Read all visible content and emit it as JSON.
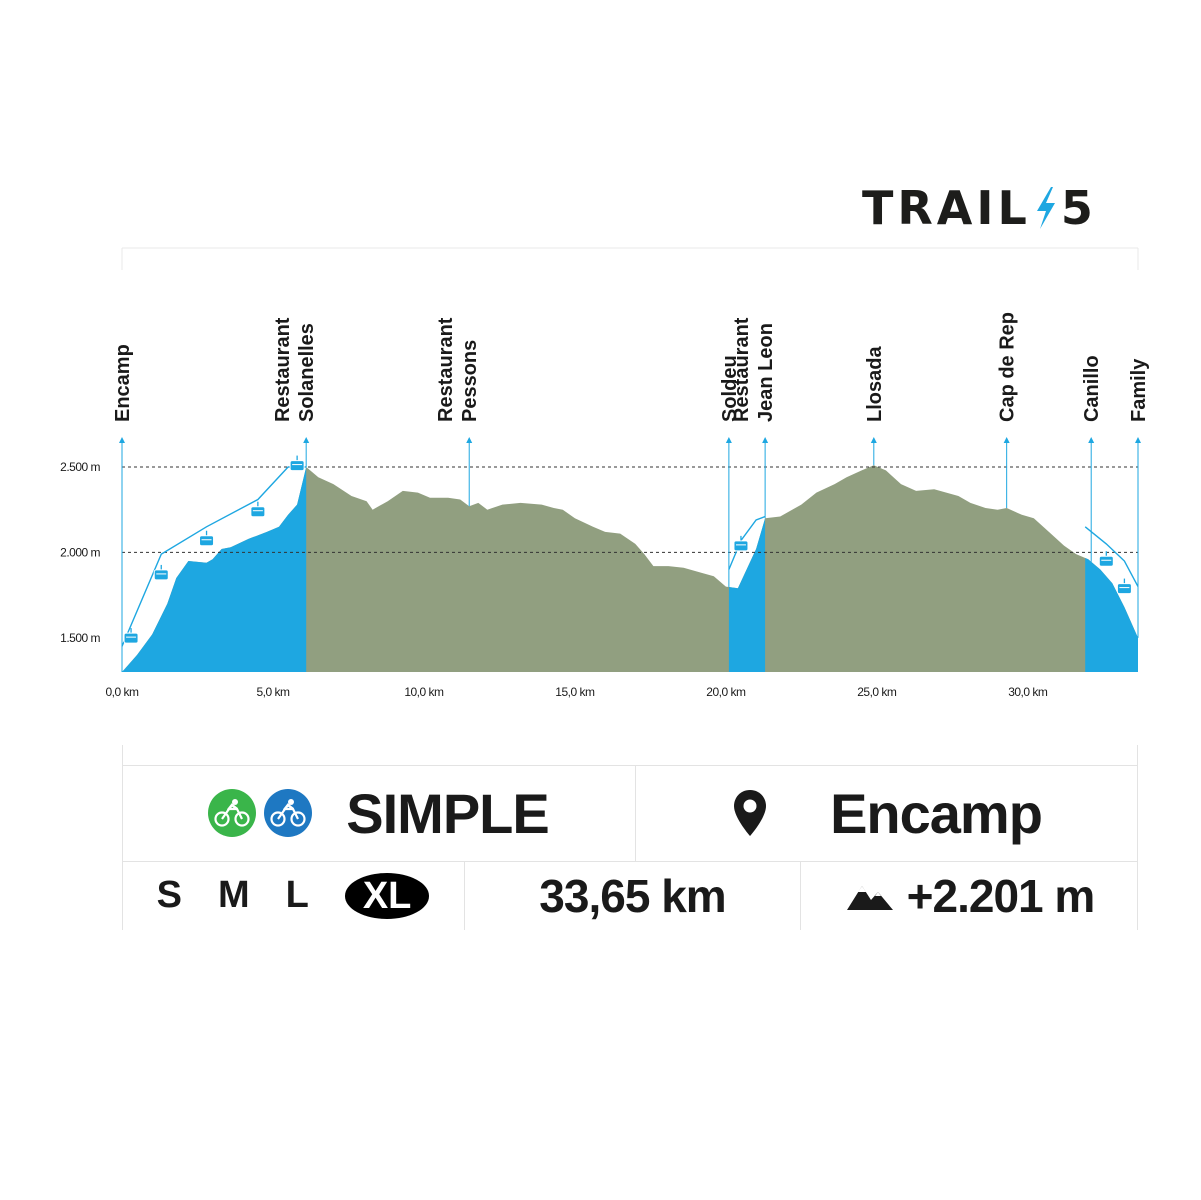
{
  "logo": {
    "text_left": "TRAIL",
    "text_right": "5",
    "accent_color": "#1ea7e1"
  },
  "chart_data": {
    "type": "area",
    "x_unit": "km",
    "y_unit": "m",
    "xlim": [
      0,
      33.65
    ],
    "ylim": [
      1300,
      2500
    ],
    "x_ticks": [
      {
        "value": 0,
        "label": "0,0 km"
      },
      {
        "value": 5,
        "label": "5,0 km"
      },
      {
        "value": 10,
        "label": "10,0 km"
      },
      {
        "value": 15,
        "label": "15,0 km"
      },
      {
        "value": 20,
        "label": "20,0 km"
      },
      {
        "value": 25,
        "label": "25,0 km"
      },
      {
        "value": 30,
        "label": "30,0 km"
      }
    ],
    "y_ticks": [
      {
        "value": 1500,
        "label": "1.500 m"
      },
      {
        "value": 2000,
        "label": "2.000 m"
      },
      {
        "value": 2500,
        "label": "2.500 m"
      }
    ],
    "gridlines": [
      2000,
      2500
    ],
    "colors": {
      "lift": "#1ea7e1",
      "trail": "#919f80",
      "cable": "#1ea7e1"
    },
    "profile": [
      [
        0,
        1300
      ],
      [
        0.5,
        1400
      ],
      [
        1.0,
        1520
      ],
      [
        1.5,
        1700
      ],
      [
        1.8,
        1850
      ],
      [
        2.2,
        1950
      ],
      [
        2.8,
        1940
      ],
      [
        3.0,
        1960
      ],
      [
        3.3,
        2020
      ],
      [
        3.6,
        2030
      ],
      [
        4.2,
        2080
      ],
      [
        4.8,
        2120
      ],
      [
        5.2,
        2150
      ],
      [
        5.5,
        2220
      ],
      [
        5.8,
        2280
      ],
      [
        6.1,
        2500
      ],
      [
        6.5,
        2440
      ],
      [
        7.0,
        2400
      ],
      [
        7.6,
        2330
      ],
      [
        8.1,
        2300
      ],
      [
        8.3,
        2250
      ],
      [
        8.8,
        2300
      ],
      [
        9.3,
        2360
      ],
      [
        9.8,
        2350
      ],
      [
        10.2,
        2320
      ],
      [
        10.8,
        2320
      ],
      [
        11.2,
        2310
      ],
      [
        11.5,
        2270
      ],
      [
        11.8,
        2290
      ],
      [
        12.1,
        2250
      ],
      [
        12.6,
        2280
      ],
      [
        13.2,
        2290
      ],
      [
        13.9,
        2280
      ],
      [
        14.3,
        2260
      ],
      [
        14.6,
        2250
      ],
      [
        15.0,
        2200
      ],
      [
        15.6,
        2150
      ],
      [
        16.0,
        2120
      ],
      [
        16.5,
        2110
      ],
      [
        17.0,
        2050
      ],
      [
        17.3,
        1990
      ],
      [
        17.6,
        1920
      ],
      [
        18.1,
        1920
      ],
      [
        18.6,
        1910
      ],
      [
        19.2,
        1880
      ],
      [
        19.6,
        1860
      ],
      [
        20.0,
        1800
      ],
      [
        20.4,
        1790
      ],
      [
        21.0,
        2020
      ],
      [
        21.3,
        2200
      ],
      [
        21.8,
        2210
      ],
      [
        22.5,
        2280
      ],
      [
        23.0,
        2350
      ],
      [
        23.6,
        2400
      ],
      [
        24.0,
        2440
      ],
      [
        24.5,
        2480
      ],
      [
        24.9,
        2510
      ],
      [
        25.3,
        2480
      ],
      [
        25.8,
        2400
      ],
      [
        26.3,
        2360
      ],
      [
        26.9,
        2370
      ],
      [
        27.3,
        2350
      ],
      [
        27.7,
        2330
      ],
      [
        28.1,
        2290
      ],
      [
        28.6,
        2260
      ],
      [
        29.0,
        2250
      ],
      [
        29.3,
        2260
      ],
      [
        29.8,
        2220
      ],
      [
        30.2,
        2200
      ],
      [
        30.7,
        2120
      ],
      [
        31.2,
        2040
      ],
      [
        31.6,
        1990
      ],
      [
        32.0,
        1960
      ],
      [
        32.4,
        1900
      ],
      [
        32.8,
        1820
      ],
      [
        33.2,
        1680
      ],
      [
        33.65,
        1500
      ]
    ],
    "lift_segments": [
      [
        0,
        6.1
      ],
      [
        20.1,
        21.3
      ],
      [
        31.9,
        33.65
      ]
    ],
    "cables": [
      [
        [
          0,
          1450
        ],
        [
          1.3,
          1990
        ],
        [
          2.8,
          2150
        ],
        [
          4.5,
          2310
        ],
        [
          5.5,
          2500
        ],
        [
          6.1,
          2500
        ]
      ],
      [
        [
          20.1,
          1900
        ],
        [
          20.5,
          2070
        ],
        [
          21.0,
          2190
        ],
        [
          21.3,
          2210
        ]
      ],
      [
        [
          31.9,
          2150
        ],
        [
          32.6,
          2050
        ],
        [
          33.2,
          1950
        ],
        [
          33.65,
          1800
        ]
      ]
    ],
    "cabins": [
      [
        0.3,
        1510
      ],
      [
        1.3,
        1880
      ],
      [
        2.8,
        2080
      ],
      [
        4.5,
        2250
      ],
      [
        5.8,
        2520
      ],
      [
        20.5,
        2050
      ],
      [
        32.6,
        1960
      ],
      [
        33.2,
        1800
      ]
    ],
    "waypoints": [
      {
        "x": 0.0,
        "lines": [
          "Encamp"
        ]
      },
      {
        "x": 6.1,
        "lines": [
          "Restaurant",
          "Solanelles"
        ]
      },
      {
        "x": 11.5,
        "lines": [
          "Restaurant",
          "Pessons"
        ]
      },
      {
        "x": 20.1,
        "lines": [
          "Soldeu"
        ]
      },
      {
        "x": 21.3,
        "lines": [
          "Restaurant",
          "Jean Leon"
        ]
      },
      {
        "x": 24.9,
        "lines": [
          "Llosada"
        ]
      },
      {
        "x": 29.3,
        "lines": [
          "Cap de Rep"
        ]
      },
      {
        "x": 32.1,
        "lines": [
          "Canillo"
        ]
      },
      {
        "x": 33.65,
        "lines": [
          "Family"
        ]
      }
    ]
  },
  "info": {
    "level": "SIMPLE",
    "level_icons": [
      "green-bike-icon",
      "blue-bike-icon"
    ],
    "level_colors": [
      "#3ab54a",
      "#1e78c2"
    ],
    "start": "Encamp",
    "start_icon": "location-pin-icon",
    "sizes": [
      "S",
      "M",
      "L",
      "XL"
    ],
    "selected_size": "XL",
    "distance": "33,65 km",
    "elevation_gain": "+2.201 m",
    "elevation_icon": "mountain-icon"
  }
}
